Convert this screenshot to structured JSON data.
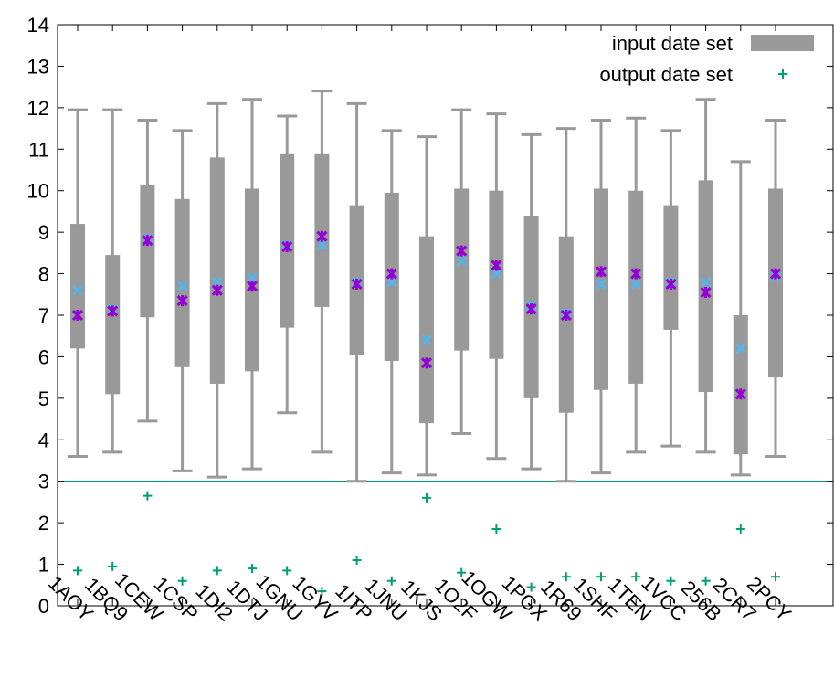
{
  "chart_data": {
    "type": "box",
    "ylim": [
      0,
      14
    ],
    "yticks": [
      "0",
      "1",
      "2",
      "3",
      "4",
      "5",
      "6",
      "7",
      "8",
      "9",
      "10",
      "11",
      "12",
      "13",
      "14"
    ],
    "categories": [
      "1AOY",
      "1BQ9",
      "1CEW",
      "1CSP",
      "1DI2",
      "1DTJ",
      "1GNU",
      "1GYV",
      "1ITP",
      "1JNU",
      "1KJS",
      "1O2F",
      "1OGW",
      "1PGX",
      "1R69",
      "1SHF",
      "1TEN",
      "1VCC",
      "256B",
      "2CR7",
      "2PCY"
    ],
    "series": [
      {
        "name": "input date set",
        "whisker_low": [
          3.6,
          3.7,
          4.45,
          3.25,
          3.1,
          3.3,
          4.65,
          3.7,
          3.0,
          3.2,
          3.15,
          4.15,
          3.55,
          3.3,
          3.0,
          3.2,
          3.7,
          3.85,
          3.7,
          3.15,
          3.6
        ],
        "q1": [
          6.2,
          5.1,
          6.95,
          5.75,
          5.35,
          5.65,
          6.7,
          7.2,
          6.05,
          5.9,
          4.4,
          6.15,
          5.95,
          5.0,
          4.65,
          5.2,
          5.35,
          6.65,
          5.15,
          3.65,
          5.5
        ],
        "q3": [
          9.2,
          8.45,
          10.15,
          9.8,
          10.8,
          10.05,
          10.9,
          10.9,
          9.65,
          9.95,
          8.9,
          10.05,
          10.0,
          9.4,
          8.9,
          10.05,
          10.0,
          9.65,
          10.25,
          7.0,
          10.05
        ],
        "whisker_high": [
          11.95,
          11.95,
          11.7,
          11.45,
          12.1,
          12.2,
          11.8,
          12.4,
          12.1,
          11.45,
          11.3,
          11.95,
          11.85,
          11.35,
          11.5,
          11.7,
          11.75,
          11.45,
          12.2,
          10.7,
          11.7
        ],
        "mean": [
          7.6,
          7.15,
          8.85,
          7.7,
          7.8,
          7.9,
          8.7,
          8.7,
          7.8,
          7.8,
          6.4,
          8.3,
          8.0,
          7.25,
          7.05,
          7.75,
          7.75,
          7.8,
          7.8,
          6.2,
          7.95
        ],
        "median": [
          7.0,
          7.1,
          8.8,
          7.35,
          7.6,
          7.7,
          8.65,
          8.9,
          7.75,
          8.0,
          5.85,
          8.55,
          8.2,
          7.15,
          7.0,
          8.05,
          8.0,
          7.75,
          7.55,
          5.1,
          8.0
        ]
      },
      {
        "name": "output date set",
        "values": [
          0.85,
          0.95,
          2.65,
          0.6,
          0.85,
          0.9,
          0.85,
          0.35,
          1.1,
          0.6,
          2.6,
          0.8,
          1.85,
          0.45,
          0.7,
          0.7,
          0.7,
          0.6,
          0.6,
          1.85,
          0.7
        ]
      }
    ],
    "reference_line": 3.0,
    "legend_position": "top-right",
    "colors": {
      "box": "#999999",
      "mean_marker": "#56b4e9",
      "median_marker": "#9400d3",
      "output_marker": "#009e73",
      "reference_line": "#009e73",
      "axis": "#000000"
    }
  }
}
